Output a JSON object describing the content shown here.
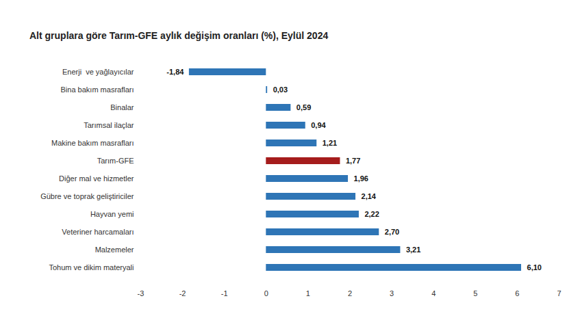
{
  "chart_data": {
    "type": "bar",
    "orientation": "horizontal",
    "title": "Alt gruplara göre Tarım-GFE aylık değişim oranları (%), Eylül 2024",
    "categories": [
      "Enerji  ve yağlayıcılar",
      "Bina bakım masrafları",
      "Binalar",
      "Tarımsal ilaçlar",
      "Makine bakım masrafları",
      "Tarım-GFE",
      "Diğer mal ve hizmetler",
      "Gübre ve toprak geliştiriciler",
      "Hayvan yemi",
      "Veteriner harcamaları",
      "Malzemeler",
      "Tohum ve dikim materyali"
    ],
    "values": [
      -1.84,
      0.03,
      0.59,
      0.94,
      1.21,
      1.77,
      1.96,
      2.14,
      2.22,
      2.7,
      3.21,
      6.1
    ],
    "value_labels": [
      "-1,84",
      "0,03",
      "0,59",
      "0,94",
      "1,21",
      "1,77",
      "1,96",
      "2,14",
      "2,22",
      "2,70",
      "3,21",
      "6,10"
    ],
    "colors": [
      "#2e75b6",
      "#2e75b6",
      "#2e75b6",
      "#2e75b6",
      "#2e75b6",
      "#a51c1c",
      "#2e75b6",
      "#2e75b6",
      "#2e75b6",
      "#2e75b6",
      "#2e75b6",
      "#2e75b6"
    ],
    "xlim": [
      -3,
      7
    ],
    "xticks": [
      -3,
      -2,
      -1,
      0,
      1,
      2,
      3,
      4,
      5,
      6,
      7
    ],
    "grid": false,
    "data_labels": true
  }
}
